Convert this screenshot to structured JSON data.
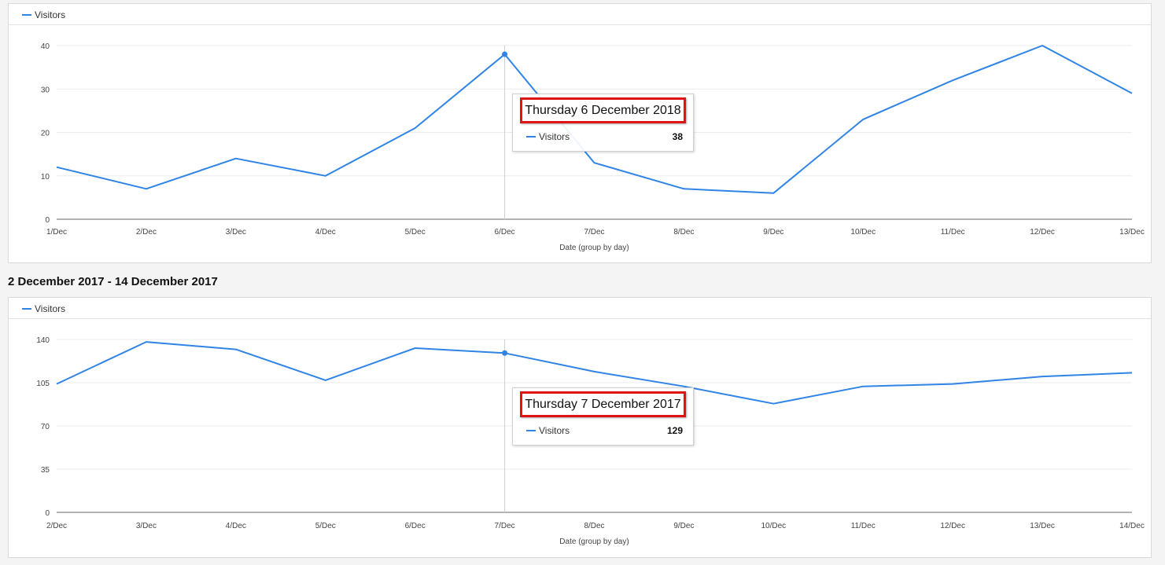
{
  "section_title": "2 December 2017 - 14 December 2017",
  "accent_color": "#2f84e6",
  "chart_data": [
    {
      "type": "line",
      "legend": [
        "Visitors"
      ],
      "categories": [
        "1/Dec",
        "2/Dec",
        "3/Dec",
        "4/Dec",
        "5/Dec",
        "6/Dec",
        "7/Dec",
        "8/Dec",
        "9/Dec",
        "10/Dec",
        "11/Dec",
        "12/Dec",
        "13/Dec"
      ],
      "series": [
        {
          "name": "Visitors",
          "values": [
            12,
            7,
            14,
            10,
            21,
            38,
            13,
            7,
            6,
            23,
            32,
            40,
            29
          ]
        }
      ],
      "xlabel": "Date (group by day)",
      "ylabel": "",
      "ylim": [
        0,
        40
      ],
      "yticks": [
        "0",
        "10",
        "20",
        "30",
        "40"
      ],
      "grid": true,
      "highlight_index": 5,
      "tooltip": {
        "title": "Thursday 6 December 2018",
        "series_name": "Visitors",
        "value": "38"
      }
    },
    {
      "type": "line",
      "legend": [
        "Visitors"
      ],
      "categories": [
        "2/Dec",
        "3/Dec",
        "4/Dec",
        "5/Dec",
        "6/Dec",
        "7/Dec",
        "8/Dec",
        "9/Dec",
        "10/Dec",
        "11/Dec",
        "12/Dec",
        "13/Dec",
        "14/Dec"
      ],
      "series": [
        {
          "name": "Visitors",
          "values": [
            104,
            138,
            132,
            107,
            133,
            129,
            114,
            102,
            88,
            102,
            104,
            110,
            113
          ]
        }
      ],
      "xlabel": "Date (group by day)",
      "ylabel": "",
      "ylim": [
        0,
        140
      ],
      "yticks": [
        "0",
        "35",
        "70",
        "105",
        "140"
      ],
      "grid": true,
      "highlight_index": 5,
      "tooltip": {
        "title": "Thursday 7 December 2017",
        "series_name": "Visitors",
        "value": "129"
      }
    }
  ]
}
